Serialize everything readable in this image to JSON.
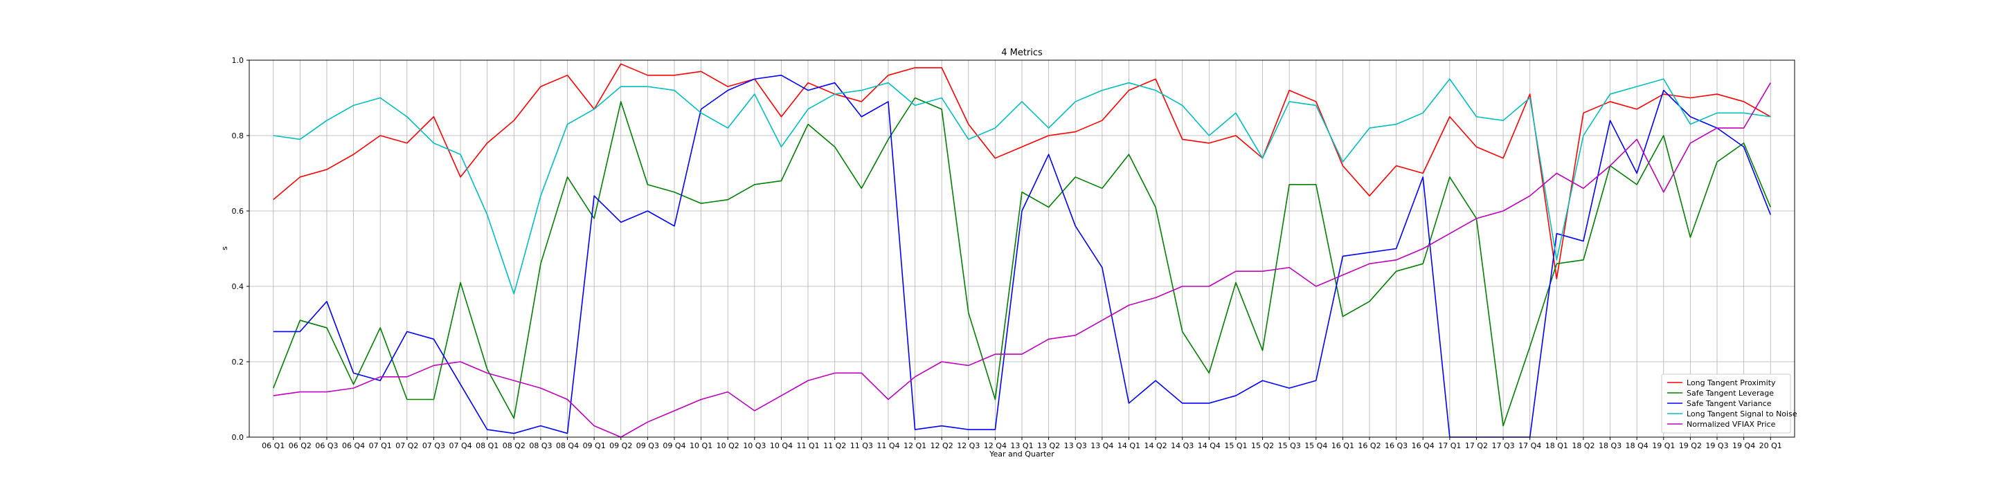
{
  "chart_data": {
    "type": "line",
    "title": "4 Metrics",
    "xlabel": "Year and Quarter",
    "ylabel": "s",
    "ylim": [
      0,
      1.0
    ],
    "yticks": [
      "0.0",
      "0.2",
      "0.4",
      "0.6",
      "0.8",
      "1.0"
    ],
    "grid": true,
    "legend_position": "lower-right",
    "categories": [
      "06 Q1",
      "06 Q2",
      "06 Q3",
      "06 Q4",
      "07 Q1",
      "07 Q2",
      "07 Q3",
      "07 Q4",
      "08 Q1",
      "08 Q2",
      "08 Q3",
      "08 Q4",
      "09 Q1",
      "09 Q2",
      "09 Q3",
      "09 Q4",
      "10 Q1",
      "10 Q2",
      "10 Q3",
      "10 Q4",
      "11 Q1",
      "11 Q2",
      "11 Q3",
      "11 Q4",
      "12 Q1",
      "12 Q2",
      "12 Q3",
      "12 Q4",
      "13 Q1",
      "13 Q2",
      "13 Q3",
      "13 Q4",
      "14 Q1",
      "14 Q2",
      "14 Q3",
      "14 Q4",
      "15 Q1",
      "15 Q2",
      "15 Q3",
      "15 Q4",
      "16 Q1",
      "16 Q2",
      "16 Q3",
      "16 Q4",
      "17 Q1",
      "17 Q2",
      "17 Q3",
      "17 Q4",
      "18 Q1",
      "18 Q2",
      "18 Q3",
      "18 Q4",
      "19 Q1",
      "19 Q2",
      "19 Q3",
      "19 Q4",
      "20 Q1"
    ],
    "series": [
      {
        "name": "Long Tangent Proximity",
        "color": "#ff0000",
        "values": [
          0.63,
          0.69,
          0.71,
          0.75,
          0.8,
          0.78,
          0.85,
          0.69,
          0.78,
          0.84,
          0.93,
          0.96,
          0.87,
          0.99,
          0.96,
          0.96,
          0.97,
          0.93,
          0.95,
          0.85,
          0.94,
          0.91,
          0.89,
          0.96,
          0.98,
          0.98,
          0.83,
          0.74,
          0.77,
          0.8,
          0.81,
          0.84,
          0.92,
          0.95,
          0.79,
          0.78,
          0.8,
          0.74,
          0.92,
          0.89,
          0.72,
          0.64,
          0.72,
          0.7,
          0.85,
          0.77,
          0.74,
          0.91,
          0.42,
          0.86,
          0.89,
          0.87,
          0.91,
          0.9,
          0.91,
          0.89,
          0.85
        ]
      },
      {
        "name": "Safe Tangent Leverage",
        "color": "#008000",
        "values": [
          0.13,
          0.31,
          0.29,
          0.14,
          0.29,
          0.1,
          0.1,
          0.41,
          0.18,
          0.05,
          0.46,
          0.69,
          0.58,
          0.89,
          0.67,
          0.65,
          0.62,
          0.63,
          0.67,
          0.68,
          0.83,
          0.77,
          0.66,
          0.79,
          0.9,
          0.87,
          0.33,
          0.1,
          0.65,
          0.61,
          0.69,
          0.66,
          0.75,
          0.61,
          0.28,
          0.17,
          0.41,
          0.23,
          0.67,
          0.67,
          0.32,
          0.36,
          0.44,
          0.46,
          0.69,
          0.58,
          0.03,
          0.24,
          0.46,
          0.47,
          0.72,
          0.67,
          0.8,
          0.53,
          0.73,
          0.78,
          0.61
        ]
      },
      {
        "name": "Safe Tangent Variance",
        "color": "#0000ff",
        "values": [
          0.28,
          0.28,
          0.36,
          0.17,
          0.15,
          0.28,
          0.26,
          0.14,
          0.02,
          0.01,
          0.03,
          0.01,
          0.64,
          0.57,
          0.6,
          0.56,
          0.87,
          0.92,
          0.95,
          0.96,
          0.92,
          0.94,
          0.85,
          0.89,
          0.02,
          0.03,
          0.02,
          0.02,
          0.6,
          0.75,
          0.56,
          0.45,
          0.09,
          0.15,
          0.09,
          0.09,
          0.11,
          0.15,
          0.13,
          0.15,
          0.48,
          0.49,
          0.5,
          0.69,
          0.0,
          0.0,
          0.0,
          0.0,
          0.54,
          0.52,
          0.84,
          0.7,
          0.92,
          0.85,
          0.82,
          0.77,
          0.59
        ]
      },
      {
        "name": "Long Tangent Signal to Noise",
        "color": "#00bfbf",
        "values": [
          0.8,
          0.79,
          0.84,
          0.88,
          0.9,
          0.85,
          0.78,
          0.75,
          0.59,
          0.38,
          0.64,
          0.83,
          0.87,
          0.93,
          0.93,
          0.92,
          0.86,
          0.82,
          0.91,
          0.77,
          0.87,
          0.91,
          0.92,
          0.94,
          0.88,
          0.9,
          0.79,
          0.82,
          0.89,
          0.82,
          0.89,
          0.92,
          0.94,
          0.92,
          0.88,
          0.8,
          0.86,
          0.74,
          0.89,
          0.88,
          0.73,
          0.82,
          0.83,
          0.86,
          0.95,
          0.85,
          0.84,
          0.9,
          0.47,
          0.8,
          0.91,
          0.93,
          0.95,
          0.83,
          0.86,
          0.86,
          0.85
        ]
      },
      {
        "name": "Normalized VFIAX Price",
        "color": "#bf00bf",
        "values": [
          0.11,
          0.12,
          0.12,
          0.13,
          0.16,
          0.16,
          0.19,
          0.2,
          0.17,
          0.15,
          0.13,
          0.1,
          0.03,
          0.0,
          0.04,
          0.07,
          0.1,
          0.12,
          0.07,
          0.11,
          0.15,
          0.17,
          0.17,
          0.1,
          0.16,
          0.2,
          0.19,
          0.22,
          0.22,
          0.26,
          0.27,
          0.31,
          0.35,
          0.37,
          0.4,
          0.4,
          0.44,
          0.44,
          0.45,
          0.4,
          0.43,
          0.46,
          0.47,
          0.5,
          0.54,
          0.58,
          0.6,
          0.64,
          0.7,
          0.66,
          0.72,
          0.79,
          0.65,
          0.78,
          0.82,
          0.82,
          0.94
        ]
      }
    ]
  }
}
